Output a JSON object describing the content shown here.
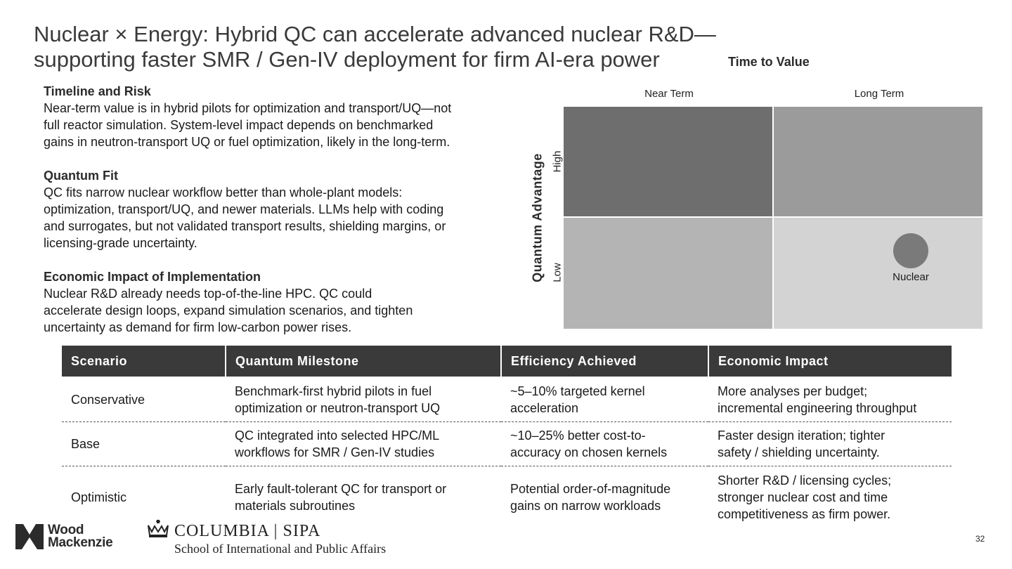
{
  "slide": {
    "title_line1": "Nuclear × Energy: Hybrid QC can accelerate advanced nuclear R&D—",
    "title_line2": "supporting faster SMR / Gen-IV deployment for firm AI-era power",
    "page_number": "32"
  },
  "sections": [
    {
      "heading": "Timeline and Risk",
      "lines": [
        "Near-term value is in hybrid pilots for optimization and transport/UQ—not",
        "full reactor simulation. System-level impact depends on benchmarked",
        "gains in neutron-transport UQ or fuel optimization, likely in the long-term."
      ]
    },
    {
      "heading": "Quantum Fit",
      "lines": [
        "QC fits narrow nuclear workflow better than whole-plant models:",
        "optimization, transport/UQ, and newer materials. LLMs help with coding",
        "and surrogates, but not validated transport results, shielding margins, or",
        "licensing-grade uncertainty."
      ]
    },
    {
      "heading": "Economic Impact of Implementation",
      "lines": [
        "Nuclear R&D already needs top-of-the-line HPC. QC could",
        "accelerate design loops, expand simulation scenarios, and tighten",
        "uncertainty as demand for firm low-carbon power rises."
      ]
    }
  ],
  "matrix": {
    "x_axis_title": "Time to Value",
    "y_axis_title": "Quantum Advantage",
    "columns": [
      "Near Term",
      "Long Term"
    ],
    "rows": [
      "High",
      "Low"
    ],
    "cell_colors": {
      "near_high": "#6e6e6e",
      "long_high": "#9b9b9b",
      "near_low": "#b4b4b4",
      "long_low": "#d3d3d3"
    },
    "marker": {
      "label": "Nuclear",
      "column": "Long Term",
      "row": "Low",
      "color": "#7a7a7a"
    }
  },
  "table": {
    "headers": [
      "Scenario",
      "Quantum Milestone",
      "Efficiency Achieved",
      "Economic Impact"
    ],
    "rows": [
      {
        "scenario": "Conservative",
        "milestone": [
          "Benchmark-first hybrid pilots in fuel",
          "optimization or neutron-transport UQ"
        ],
        "efficiency": [
          "~5–10% targeted kernel",
          "acceleration"
        ],
        "impact": [
          "More analyses per budget;",
          "incremental engineering throughput"
        ]
      },
      {
        "scenario": "Base",
        "milestone": [
          "QC integrated into selected HPC/ML",
          "workflows for SMR / Gen-IV studies"
        ],
        "efficiency": [
          "~10–25% better cost-to-",
          "accuracy on chosen kernels"
        ],
        "impact": [
          "Faster design iteration; tighter",
          "safety / shielding uncertainty."
        ]
      },
      {
        "scenario": "Optimistic",
        "milestone": [
          "Early fault-tolerant QC for transport or",
          "materials subroutines"
        ],
        "efficiency": [
          "Potential order-of-magnitude",
          "gains on narrow workloads"
        ],
        "impact": [
          "Shorter R&D / licensing cycles;",
          "stronger nuclear cost and time",
          "competitiveness as firm power."
        ]
      }
    ]
  },
  "footer": {
    "wm_line1": "Wood",
    "wm_line2": "Mackenzie",
    "columbia_name": "COLUMBIA | SIPA",
    "columbia_school": "School of International and Public Affairs"
  }
}
